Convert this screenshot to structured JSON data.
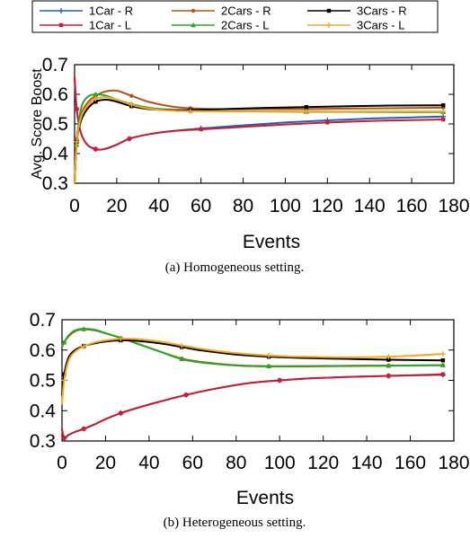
{
  "legend": [
    {
      "label": "1Car - R",
      "color": "#1f5fc0",
      "marker": "plus"
    },
    {
      "label": "2Cars - R",
      "color": "#b5531c",
      "marker": "dot"
    },
    {
      "label": "3Cars - R",
      "color": "#000000",
      "marker": "square"
    },
    {
      "label": "1Car - L",
      "color": "#c81e2d",
      "marker": "square"
    },
    {
      "label": "2Cars - L",
      "color": "#2aa52a",
      "marker": "triangle"
    },
    {
      "label": "3Cars - L",
      "color": "#f5a623",
      "marker": "plus"
    }
  ],
  "chart_data": [
    {
      "type": "line",
      "ylabel": "Avg. Score Boost",
      "xlabel": "Events",
      "caption": "(a) Homogeneous setting.",
      "xlim": [
        0,
        180
      ],
      "ylim": [
        0.3,
        0.7
      ],
      "xticks": [
        "0",
        "20",
        "40",
        "60",
        "80",
        "100",
        "120",
        "140",
        "160",
        "180"
      ],
      "yticks": [
        "0.3",
        "0.4",
        "0.5",
        "0.6",
        "0.7"
      ],
      "grid": false,
      "series": [
        {
          "name": "1Car - R",
          "color": "#1f5fc0",
          "x": [
            0,
            1,
            3,
            6,
            10,
            14,
            20,
            26,
            35,
            45,
            60,
            80,
            100,
            120,
            140,
            160,
            175
          ],
          "y": [
            0.66,
            0.55,
            0.47,
            0.43,
            0.415,
            0.415,
            0.43,
            0.45,
            0.465,
            0.475,
            0.485,
            0.495,
            0.505,
            0.512,
            0.518,
            0.522,
            0.525
          ]
        },
        {
          "name": "1Car - L",
          "color": "#c81e2d",
          "x": [
            0,
            1,
            3,
            6,
            10,
            14,
            20,
            26,
            35,
            45,
            60,
            80,
            100,
            120,
            140,
            160,
            175
          ],
          "y": [
            0.66,
            0.55,
            0.47,
            0.43,
            0.415,
            0.415,
            0.43,
            0.45,
            0.465,
            0.475,
            0.482,
            0.49,
            0.498,
            0.505,
            0.51,
            0.513,
            0.515
          ]
        },
        {
          "name": "2Cars - R",
          "color": "#b5531c",
          "x": [
            0,
            1,
            3,
            6,
            10,
            15,
            20,
            27,
            35,
            45,
            55,
            70,
            90,
            110,
            130,
            150,
            175
          ],
          "y": [
            0.3,
            0.45,
            0.53,
            0.57,
            0.595,
            0.61,
            0.612,
            0.595,
            0.575,
            0.56,
            0.553,
            0.55,
            0.55,
            0.55,
            0.552,
            0.553,
            0.555
          ]
        },
        {
          "name": "2Cars - L",
          "color": "#2aa52a",
          "x": [
            0,
            1,
            3,
            6,
            10,
            15,
            20,
            27,
            35,
            45,
            55,
            70,
            90,
            110,
            130,
            150,
            175
          ],
          "y": [
            0.3,
            0.43,
            0.55,
            0.59,
            0.6,
            0.595,
            0.582,
            0.567,
            0.555,
            0.548,
            0.545,
            0.543,
            0.542,
            0.541,
            0.541,
            0.54,
            0.54
          ]
        },
        {
          "name": "3Cars - R",
          "color": "#000000",
          "x": [
            0,
            1,
            3,
            6,
            10,
            15,
            20,
            27,
            35,
            45,
            55,
            70,
            90,
            110,
            130,
            150,
            175
          ],
          "y": [
            0.3,
            0.44,
            0.51,
            0.55,
            0.575,
            0.582,
            0.575,
            0.56,
            0.55,
            0.547,
            0.547,
            0.55,
            0.554,
            0.557,
            0.56,
            0.562,
            0.563
          ]
        },
        {
          "name": "3Cars - L",
          "color": "#f5a623",
          "x": [
            0,
            1,
            3,
            6,
            10,
            15,
            20,
            27,
            35,
            45,
            55,
            70,
            90,
            110,
            130,
            150,
            175
          ],
          "y": [
            0.3,
            0.44,
            0.52,
            0.56,
            0.585,
            0.59,
            0.582,
            0.565,
            0.552,
            0.545,
            0.543,
            0.542,
            0.542,
            0.542,
            0.542,
            0.542,
            0.542
          ]
        }
      ]
    },
    {
      "type": "line",
      "ylabel": "",
      "xlabel": "Events",
      "caption": "(b) Heterogeneous setting.",
      "xlim": [
        0,
        180
      ],
      "ylim": [
        0.3,
        0.7
      ],
      "xticks": [
        "0",
        "20",
        "40",
        "60",
        "80",
        "100",
        "120",
        "140",
        "160",
        "180"
      ],
      "yticks": [
        "0.3",
        "0.4",
        "0.5",
        "0.6",
        "0.7"
      ],
      "grid": false,
      "series": [
        {
          "name": "1Car - R",
          "color": "#1f5fc0",
          "x": [
            0,
            1,
            3,
            6,
            10,
            15,
            20,
            27,
            35,
            45,
            57,
            70,
            85,
            100,
            115,
            130,
            150,
            175
          ],
          "y": [
            0.34,
            0.31,
            0.32,
            0.33,
            0.34,
            0.355,
            0.372,
            0.392,
            0.41,
            0.43,
            0.452,
            0.472,
            0.49,
            0.5,
            0.507,
            0.511,
            0.515,
            0.518
          ]
        },
        {
          "name": "1Car - L",
          "color": "#c81e2d",
          "x": [
            0,
            1,
            3,
            6,
            10,
            15,
            20,
            27,
            35,
            45,
            57,
            70,
            85,
            100,
            115,
            130,
            150,
            175
          ],
          "y": [
            0.34,
            0.31,
            0.32,
            0.33,
            0.34,
            0.355,
            0.372,
            0.392,
            0.41,
            0.43,
            0.452,
            0.472,
            0.49,
            0.5,
            0.507,
            0.511,
            0.515,
            0.52
          ]
        },
        {
          "name": "2Cars - R",
          "color": "#b5531c",
          "x": [
            0,
            1,
            3,
            6,
            10,
            15,
            20,
            27,
            35,
            45,
            55,
            65,
            80,
            95,
            110,
            130,
            150,
            175
          ],
          "y": [
            0.61,
            0.625,
            0.645,
            0.662,
            0.668,
            0.665,
            0.655,
            0.64,
            0.62,
            0.595,
            0.572,
            0.56,
            0.55,
            0.547,
            0.547,
            0.548,
            0.549,
            0.55
          ]
        },
        {
          "name": "2Cars - L",
          "color": "#2aa52a",
          "x": [
            0,
            1,
            3,
            6,
            10,
            15,
            20,
            27,
            35,
            45,
            55,
            65,
            80,
            95,
            110,
            130,
            150,
            175
          ],
          "y": [
            0.61,
            0.625,
            0.648,
            0.665,
            0.67,
            0.667,
            0.656,
            0.64,
            0.62,
            0.595,
            0.57,
            0.558,
            0.549,
            0.546,
            0.546,
            0.547,
            0.548,
            0.55
          ]
        },
        {
          "name": "3Cars - R",
          "color": "#000000",
          "x": [
            0,
            1,
            3,
            6,
            10,
            15,
            20,
            27,
            35,
            45,
            55,
            65,
            80,
            95,
            110,
            130,
            150,
            175
          ],
          "y": [
            0.45,
            0.52,
            0.575,
            0.6,
            0.613,
            0.622,
            0.628,
            0.632,
            0.63,
            0.622,
            0.61,
            0.598,
            0.585,
            0.578,
            0.574,
            0.571,
            0.568,
            0.566
          ]
        },
        {
          "name": "3Cars - L",
          "color": "#f5a623",
          "x": [
            0,
            1,
            3,
            6,
            10,
            15,
            20,
            27,
            35,
            45,
            55,
            65,
            80,
            95,
            110,
            130,
            150,
            175
          ],
          "y": [
            0.42,
            0.5,
            0.565,
            0.595,
            0.612,
            0.625,
            0.632,
            0.637,
            0.636,
            0.628,
            0.615,
            0.603,
            0.59,
            0.582,
            0.578,
            0.576,
            0.578,
            0.587
          ]
        }
      ]
    }
  ]
}
